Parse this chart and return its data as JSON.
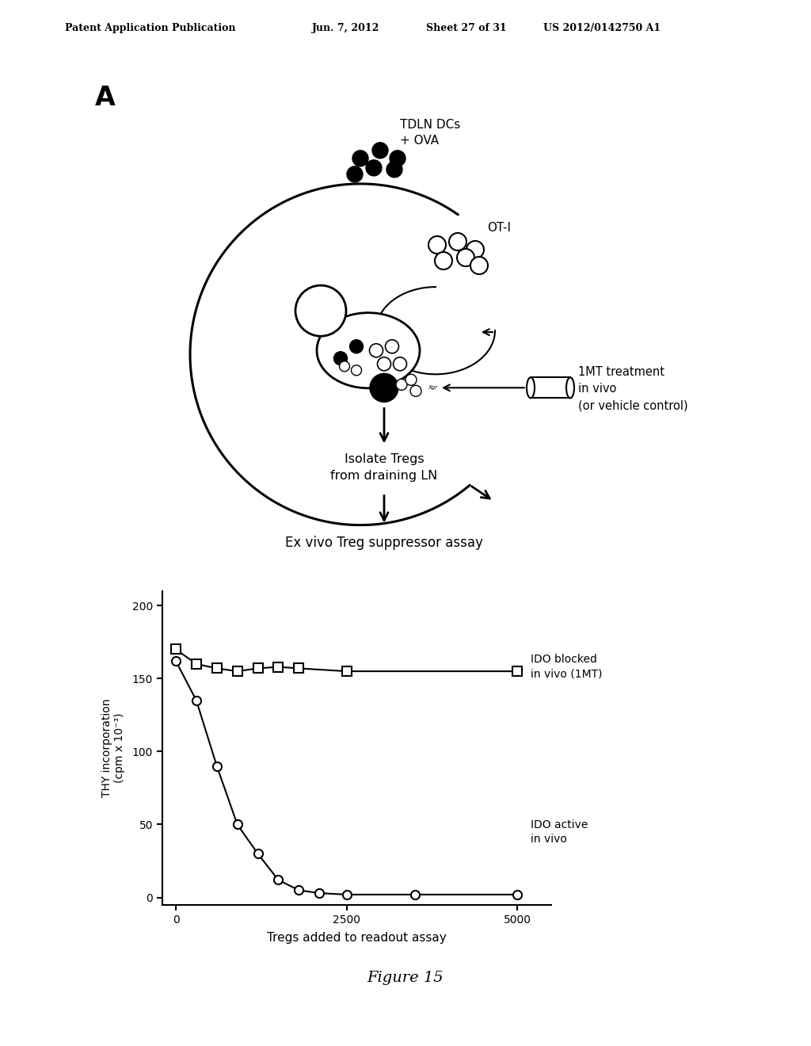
{
  "patent_header": "Patent Application Publication",
  "patent_date": "Jun. 7, 2012",
  "patent_sheet": "Sheet 27 of 31",
  "patent_number": "US 2012/0142750 A1",
  "panel_label": "A",
  "diagram_label_tdln": "TDLN DCs\n+ OVA",
  "diagram_label_oti": "OT-I",
  "diagram_label_1mt": "1MT treatment\nin vivo\n(or vehicle control)",
  "diagram_label_isolate": "Isolate Tregs\nfrom draining LN",
  "assay_title": "Ex vivo Treg suppressor assay",
  "xlabel": "Tregs added to readout assay",
  "ylabel": "THY incorporation\n(cpm x 10⁻³)",
  "xticks": [
    0,
    2500,
    5000
  ],
  "yticks": [
    0,
    50,
    100,
    150,
    200
  ],
  "ylim": [
    -5,
    210
  ],
  "xlim": [
    -200,
    5500
  ],
  "ido_blocked_x": [
    0,
    300,
    600,
    900,
    1200,
    1500,
    1800,
    2500,
    5000
  ],
  "ido_blocked_y": [
    170,
    160,
    157,
    155,
    157,
    158,
    157,
    155,
    155
  ],
  "ido_active_x": [
    0,
    300,
    600,
    900,
    1200,
    1500,
    1800,
    2100,
    2500,
    3500,
    5000
  ],
  "ido_active_y": [
    162,
    135,
    90,
    50,
    30,
    12,
    5,
    3,
    2,
    2,
    2
  ],
  "label_ido_blocked": "IDO blocked\nin vivo (1MT)",
  "label_ido_active": "IDO active\nin vivo",
  "figure_caption": "Figure 15",
  "bg_color": "#ffffff",
  "line_color": "#000000"
}
